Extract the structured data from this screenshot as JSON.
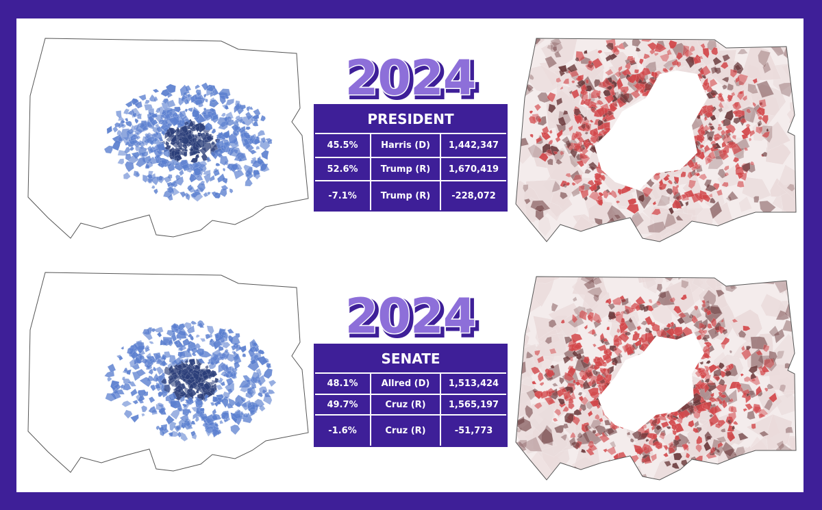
{
  "colors": {
    "frame": "#3e1f98",
    "background": "#ffffff",
    "dem_blue": "#5b7fcf",
    "dem_dark": "#2b3e79",
    "rep_red": "#d2474a",
    "rep_dark": "#6b3a3c",
    "rep_light": "#eadbdb"
  },
  "panels": [
    {
      "id": "president",
      "year": "2024",
      "race": "PRESIDENT",
      "rows": [
        {
          "pct": "45.5%",
          "candidate": "Harris (D)",
          "votes": "1,442,347"
        },
        {
          "pct": "52.6%",
          "candidate": "Trump (R)",
          "votes": "1,670,419"
        },
        {
          "pct": "-7.1%",
          "candidate": "Trump (R)",
          "votes": "-228,072"
        }
      ]
    },
    {
      "id": "senate",
      "year": "2024",
      "race": "SENATE",
      "rows": [
        {
          "pct": "48.1%",
          "candidate": "Allred (D)",
          "votes": "1,513,424"
        },
        {
          "pct": "49.7%",
          "candidate": "Cruz (R)",
          "votes": "1,565,197"
        },
        {
          "pct": "-1.6%",
          "candidate": "Cruz (R)",
          "votes": "-51,773"
        }
      ]
    }
  ]
}
